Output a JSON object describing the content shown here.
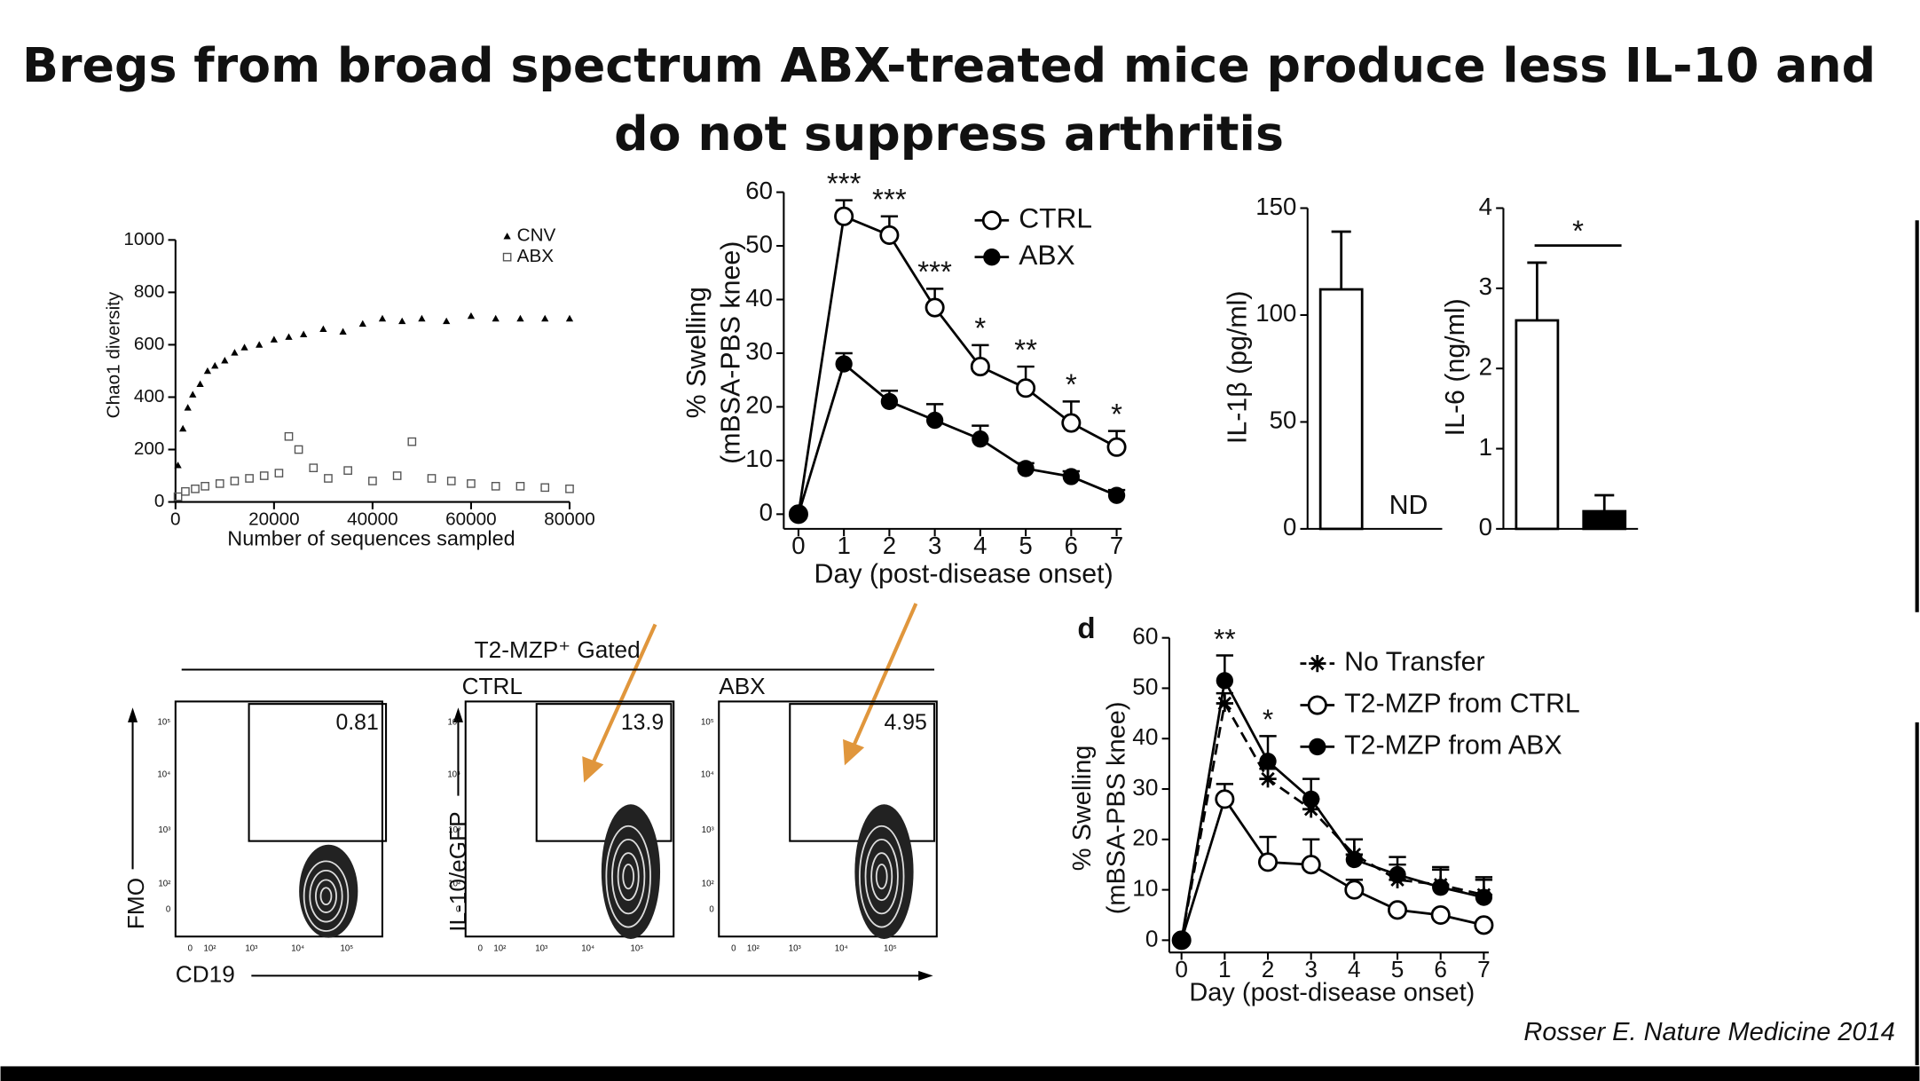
{
  "title": [
    "Bregs from broad spectrum ABX-treated mice produce less IL-10 and",
    "do not suppress  arthritis"
  ],
  "citation": "Rosser E. Nature Medicine 2014",
  "chart_data": [
    {
      "type": "scatter",
      "xlabel": "Number of sequences sampled",
      "ylabel": "Chao1 diversity",
      "xlim": [
        0,
        80000
      ],
      "ylim": [
        0,
        1000
      ],
      "xticks": [
        0,
        20000,
        40000,
        60000,
        80000
      ],
      "yticks": [
        0,
        200,
        400,
        600,
        800,
        1000
      ],
      "series": [
        {
          "name": "CNV",
          "color": "#000000",
          "marker": "triangle",
          "x": [
            500,
            1500,
            2500,
            3500,
            5000,
            6500,
            8000,
            10000,
            12000,
            14000,
            17000,
            20000,
            23000,
            26000,
            30000,
            34000,
            38000,
            42000,
            46000,
            50000,
            55000,
            60000,
            65000,
            70000,
            75000,
            80000
          ],
          "values": [
            140,
            280,
            360,
            410,
            450,
            500,
            520,
            540,
            570,
            590,
            600,
            620,
            630,
            640,
            660,
            650,
            680,
            700,
            690,
            700,
            690,
            710,
            700,
            700,
            700,
            700
          ]
        },
        {
          "name": "ABX",
          "color": "#555555",
          "marker": "open-square",
          "x": [
            500,
            2000,
            4000,
            6000,
            9000,
            12000,
            15000,
            18000,
            21000,
            23000,
            25000,
            28000,
            31000,
            35000,
            40000,
            45000,
            48000,
            52000,
            56000,
            60000,
            65000,
            70000,
            75000,
            80000
          ],
          "values": [
            20,
            40,
            50,
            60,
            70,
            80,
            90,
            100,
            110,
            250,
            200,
            130,
            90,
            120,
            80,
            100,
            230,
            90,
            80,
            70,
            60,
            60,
            55,
            50
          ]
        }
      ]
    },
    {
      "type": "line",
      "xlabel": "Day (post-disease onset)",
      "ylabel": [
        "% Swelling",
        "(mBSA-PBS knee)"
      ],
      "x": [
        0,
        1,
        2,
        3,
        4,
        5,
        6,
        7
      ],
      "xlim": [
        0,
        7
      ],
      "ylim": [
        0,
        60
      ],
      "xticks": [
        0,
        1,
        2,
        3,
        4,
        5,
        6,
        7
      ],
      "yticks": [
        0,
        10,
        20,
        30,
        40,
        50,
        60
      ],
      "series": [
        {
          "name": "CTRL",
          "color": "#000000",
          "marker": "open-circle",
          "values": [
            0,
            55.5,
            52,
            38.5,
            27.5,
            23.5,
            17,
            12.5
          ],
          "errors": [
            0,
            3,
            3.5,
            3.5,
            4,
            4,
            4,
            3
          ]
        },
        {
          "name": "ABX",
          "color": "#000000",
          "marker": "filled-circle",
          "values": [
            0,
            28,
            21,
            17.5,
            14,
            8.5,
            7,
            3.5
          ],
          "errors": [
            0,
            2,
            2,
            3,
            2.5,
            1,
            1,
            1
          ]
        }
      ],
      "annotations": [
        {
          "x": 1,
          "text": "***"
        },
        {
          "x": 2,
          "text": "***"
        },
        {
          "x": 3,
          "text": "***"
        },
        {
          "x": 4,
          "text": "*"
        },
        {
          "x": 5,
          "text": "**"
        },
        {
          "x": 6,
          "text": "*"
        },
        {
          "x": 7,
          "text": "*"
        }
      ]
    },
    {
      "type": "bar",
      "ylabel": "IL-1β (pg/ml)",
      "categories": [
        null,
        null
      ],
      "ylim": [
        0,
        150
      ],
      "yticks": [
        0,
        50,
        100,
        150
      ],
      "values": [
        112,
        null
      ],
      "errors": [
        27,
        null
      ],
      "value_labels": [
        null,
        "ND"
      ],
      "colors": [
        "#ffffff",
        "#000000"
      ]
    },
    {
      "type": "bar",
      "ylabel": "IL-6 (ng/ml)",
      "categories": [
        null,
        null
      ],
      "ylim": [
        0,
        4
      ],
      "yticks": [
        0,
        1,
        2,
        3,
        4
      ],
      "values": [
        2.6,
        0.22
      ],
      "errors": [
        0.72,
        0.2
      ],
      "colors": [
        "#ffffff",
        "#000000"
      ],
      "annotation": "*"
    },
    {
      "type": "line",
      "panel_label": "d",
      "xlabel": "Day (post-disease onset)",
      "ylabel": [
        "% Swelling",
        "(mBSA-PBS knee)"
      ],
      "x": [
        0,
        1,
        2,
        3,
        4,
        5,
        6,
        7
      ],
      "xlim": [
        0,
        7
      ],
      "ylim": [
        0,
        60
      ],
      "xticks": [
        0,
        1,
        2,
        3,
        4,
        5,
        6,
        7
      ],
      "yticks": [
        0,
        10,
        20,
        30,
        40,
        50,
        60
      ],
      "series": [
        {
          "name": "No Transfer",
          "color": "#000000",
          "marker": "asterisk",
          "dashed": true,
          "values": [
            0,
            47,
            32,
            26,
            17,
            12,
            11,
            9
          ],
          "errors": [
            0,
            2,
            2,
            2,
            3,
            3,
            3,
            3
          ]
        },
        {
          "name": "T2-MZP from CTRL",
          "color": "#000000",
          "marker": "open-circle",
          "values": [
            0,
            28,
            15.5,
            15,
            10,
            6,
            5,
            3
          ],
          "errors": [
            0,
            3,
            5,
            5,
            2,
            0,
            0,
            0
          ]
        },
        {
          "name": "T2-MZP from ABX",
          "color": "#000000",
          "marker": "filled-circle",
          "values": [
            0,
            51.5,
            35.5,
            28,
            16,
            13,
            10.5,
            8.5
          ],
          "errors": [
            0,
            5,
            5,
            4,
            4,
            3.5,
            4,
            4
          ]
        }
      ],
      "annotations": [
        {
          "x": 1,
          "text": "**"
        },
        {
          "x": 2,
          "text": "*"
        }
      ]
    }
  ],
  "flow_panel": {
    "gate_label": "T2-MZP⁺ Gated",
    "group_labels": [
      "CTRL",
      "ABX"
    ],
    "gate_percents": [
      0.81,
      13.9,
      4.95
    ],
    "y_labels": [
      "FMO",
      "IL-10/eGFP"
    ],
    "x_label": "CD19",
    "axis_ticks": [
      "0",
      "10²",
      "10³",
      "10⁴",
      "10⁵"
    ]
  }
}
